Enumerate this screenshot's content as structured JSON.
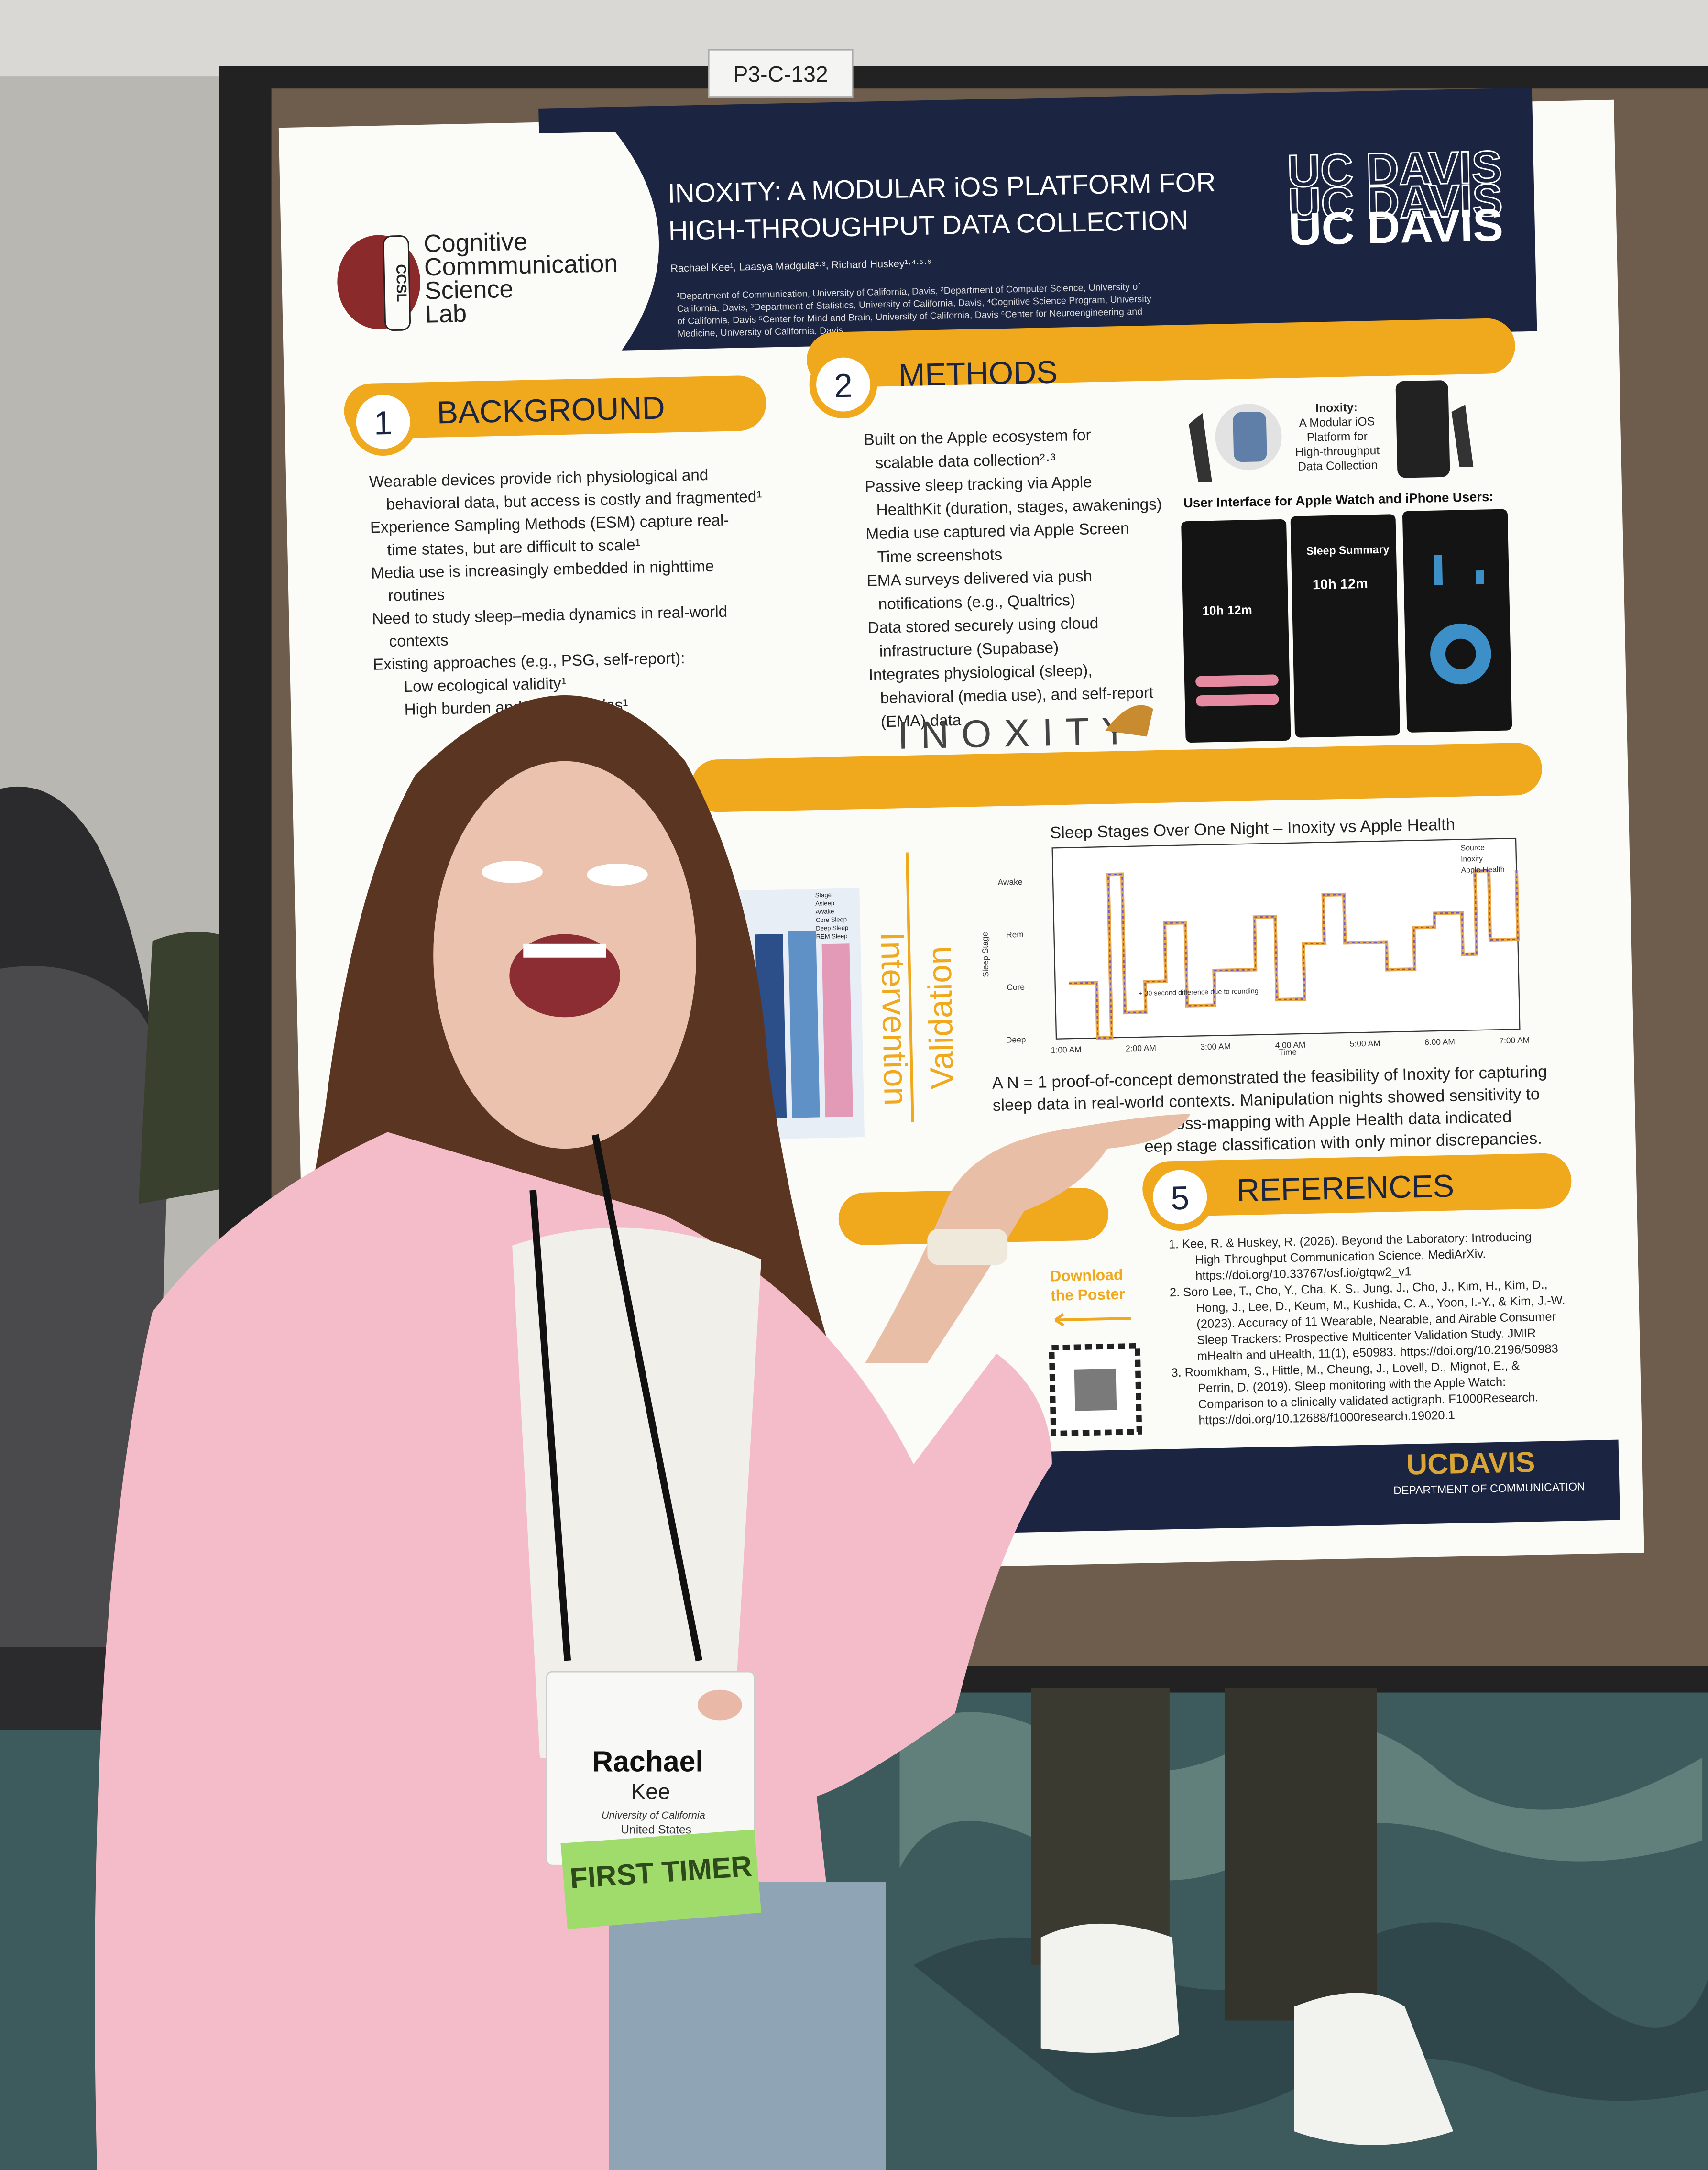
{
  "booth_label": "P3-C-132",
  "poster": {
    "lab_logo": "CCSL",
    "lab_name": [
      "Cognitive",
      "Commmunication",
      "Science",
      "Lab"
    ],
    "title": [
      "INOXITY: A MODULAR iOS PLATFORM FOR",
      "HIGH-THROUGHPUT DATA COLLECTION"
    ],
    "authors": "Rachael Kee¹, Laasya Madgula²·³, Richard Huskey¹·⁴·⁵·⁶",
    "affiliations": [
      "¹Department of Communication, University of California, Davis, ²Department of Computer Science, University of",
      "California, Davis, ³Department of Statistics, University of California, Davis, ⁴Cognitive Science Program, University",
      "of California, Davis ⁵Center for Mind and Brain, University of California, Davis ⁶Center for Neuroengineering and",
      "Medicine, University of California, Davis"
    ],
    "university_logo": [
      "UC DAVIS",
      "UC DAVIS",
      "UC DAVIS"
    ],
    "background": {
      "number": "1",
      "heading": "BACKGROUND",
      "bullets": [
        "Wearable devices provide rich physiological and",
        "behavioral data, but access is costly and fragmented¹",
        "Experience Sampling Methods (ESM) capture real-",
        "time states, but are difficult to scale¹",
        "Media use is increasingly embedded in nighttime",
        "routines",
        "Need to study sleep–media dynamics in real-world",
        "contexts",
        "Existing approaches (e.g., PSG, self-report):",
        "Low ecological validity¹",
        "High burden and reporting bias¹"
      ]
    },
    "methods": {
      "number": "2",
      "heading": "METHODS",
      "bullets": [
        "Built on the Apple ecosystem for",
        "scalable data collection²·³",
        "Passive sleep tracking via Apple",
        "HealthKit (duration, stages, awakenings)",
        "Media use captured via Apple Screen",
        "Time screenshots",
        "EMA surveys delivered via push",
        "notifications (e.g., Qualtrics)",
        "Data stored securely using cloud",
        "infrastructure (Supabase)",
        "Integrates physiological (sleep),",
        "behavioral (media use), and self-report",
        "(EMA) data"
      ],
      "app_caption": [
        "Inoxity:",
        "A Modular iOS",
        "Platform for",
        "High-throughput",
        "Data Collection"
      ],
      "ui_caption": "User Interface for Apple Watch and iPhone Users:",
      "screens": [
        "10h 12m",
        "Sleep Summary",
        "10h 12m"
      ],
      "logo": "INOXITY"
    },
    "results": {
      "labels": [
        "Intervention",
        "Validation"
      ],
      "left_legend": [
        "Stage",
        "Asleep",
        "Awake",
        "Core Sleep",
        "Deep Sleep",
        "REM Sleep"
      ],
      "chart_title": "Sleep Stages Over One Night – Inoxity vs Apple Health",
      "y_axis_title": "Sleep Stage",
      "x_axis_title": "Time",
      "y_labels": [
        "Awake",
        "Rem",
        "Core",
        "Deep"
      ],
      "x_labels": [
        "1:00 AM",
        "2:00 AM",
        "3:00 AM",
        "4:00 AM",
        "5:00 AM",
        "6:00 AM",
        "7:00 AM"
      ],
      "legend": [
        "Source",
        "Inoxity",
        "Apple Health"
      ],
      "annotation": "+ 30 second difference due to rounding",
      "summary": [
        "A N = 1 proof-of-concept demonstrated the feasibility of Inoxity for capturing",
        "sleep data in real-world contexts. Manipulation nights showed sensitivity to",
        "cross-mapping with Apple Health data indicated",
        "eep stage classification with only minor discrepancies."
      ]
    },
    "download": [
      "Download",
      "the Poster"
    ],
    "references": {
      "number": "5",
      "heading": "REFERENCES",
      "lines": [
        "1.  Kee, R. & Huskey, R. (2026). Beyond the Laboratory: Introducing",
        "High-Throughput Communication Science. MediArXiv.",
        "https://doi.org/10.33767/osf.io/gtqw2_v1",
        "2.  Soro Lee, T., Cho, Y., Cha, K. S., Jung, J., Cho, J., Kim, H., Kim, D.,",
        "Hong, J., Lee, D., Keum, M., Kushida, C. A., Yoon, I.-Y., & Kim, J.-W.",
        "(2023). Accuracy of 11 Wearable, Nearable, and Airable Consumer",
        "Sleep Trackers: Prospective Multicenter Validation Study. JMIR",
        "mHealth and uHealth, 11(1), e50983. https://doi.org/10.2196/50983",
        "3.  Roomkham, S., Hittle, M., Cheung, J., Lovell, D., Mignot, E., &",
        "Perrin, D. (2019). Sleep monitoring with the Apple Watch:",
        "Comparison to a clinically validated actigraph. F1000Research.",
        "https://doi.org/10.12688/f1000research.19020.1"
      ]
    },
    "footer": [
      "UCDAVIS",
      "DEPARTMENT OF COMMUNICATION"
    ]
  },
  "badge": {
    "first_name": "Rachael",
    "last_name": "Kee",
    "institution": "University of California",
    "country": "United States",
    "ribbon": "FIRST TIMER"
  }
}
